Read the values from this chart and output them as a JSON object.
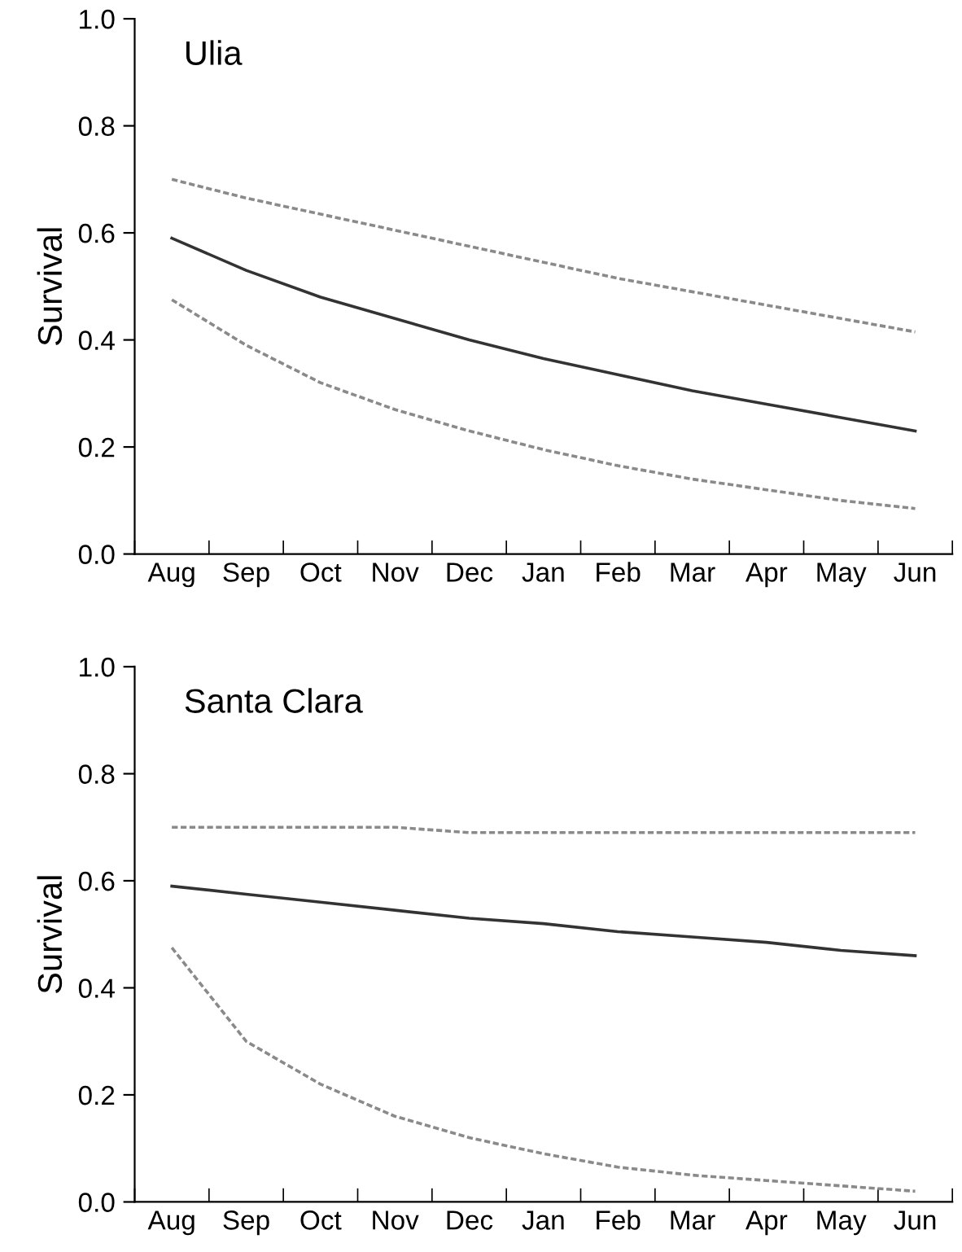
{
  "chart_data": [
    {
      "type": "line",
      "title": "Ulia",
      "ylabel": "Survival",
      "categories": [
        "Aug",
        "Sep",
        "Oct",
        "Nov",
        "Dec",
        "Jan",
        "Feb",
        "Mar",
        "Apr",
        "May",
        "Jun"
      ],
      "ylim": [
        0,
        1
      ],
      "yticks": [
        {
          "value": 0,
          "label": "0.0"
        },
        {
          "value": 0.2,
          "label": "0.2"
        },
        {
          "value": 0.4,
          "label": "0.4"
        },
        {
          "value": 0.6,
          "label": "0.6"
        },
        {
          "value": 0.8,
          "label": "0.8"
        },
        {
          "value": 1,
          "label": "1.0"
        }
      ],
      "grid": false,
      "legend": false,
      "marker": "none",
      "series": [
        {
          "color": "#8a8a8a",
          "line_style": "dotted",
          "values": [
            0.7,
            0.665,
            0.635,
            0.605,
            0.575,
            0.545,
            0.515,
            0.49,
            0.465,
            0.44,
            0.415
          ]
        },
        {
          "color": "#333333",
          "line_style": "solid",
          "values": [
            0.59,
            0.53,
            0.48,
            0.44,
            0.4,
            0.365,
            0.335,
            0.305,
            0.28,
            0.255,
            0.23
          ]
        },
        {
          "color": "#8a8a8a",
          "line_style": "dotted",
          "values": [
            0.475,
            0.39,
            0.32,
            0.27,
            0.23,
            0.195,
            0.165,
            0.14,
            0.12,
            0.1,
            0.085
          ]
        }
      ]
    },
    {
      "type": "line",
      "title": "Santa Clara",
      "ylabel": "Survival",
      "categories": [
        "Aug",
        "Sep",
        "Oct",
        "Nov",
        "Dec",
        "Jan",
        "Feb",
        "Mar",
        "Apr",
        "May",
        "Jun"
      ],
      "ylim": [
        0,
        1
      ],
      "yticks": [
        {
          "value": 0,
          "label": "0.0"
        },
        {
          "value": 0.2,
          "label": "0.2"
        },
        {
          "value": 0.4,
          "label": "0.4"
        },
        {
          "value": 0.6,
          "label": "0.6"
        },
        {
          "value": 0.8,
          "label": "0.8"
        },
        {
          "value": 1,
          "label": "1.0"
        }
      ],
      "grid": false,
      "legend": false,
      "marker": "none",
      "series": [
        {
          "color": "#8a8a8a",
          "line_style": "dotted",
          "values": [
            0.7,
            0.7,
            0.7,
            0.7,
            0.69,
            0.69,
            0.69,
            0.69,
            0.69,
            0.69,
            0.69
          ]
        },
        {
          "color": "#333333",
          "line_style": "solid",
          "values": [
            0.59,
            0.575,
            0.56,
            0.545,
            0.53,
            0.52,
            0.505,
            0.495,
            0.485,
            0.47,
            0.46
          ]
        },
        {
          "color": "#8a8a8a",
          "line_style": "dotted",
          "values": [
            0.475,
            0.3,
            0.22,
            0.16,
            0.12,
            0.09,
            0.065,
            0.05,
            0.04,
            0.03,
            0.02
          ]
        }
      ]
    }
  ]
}
